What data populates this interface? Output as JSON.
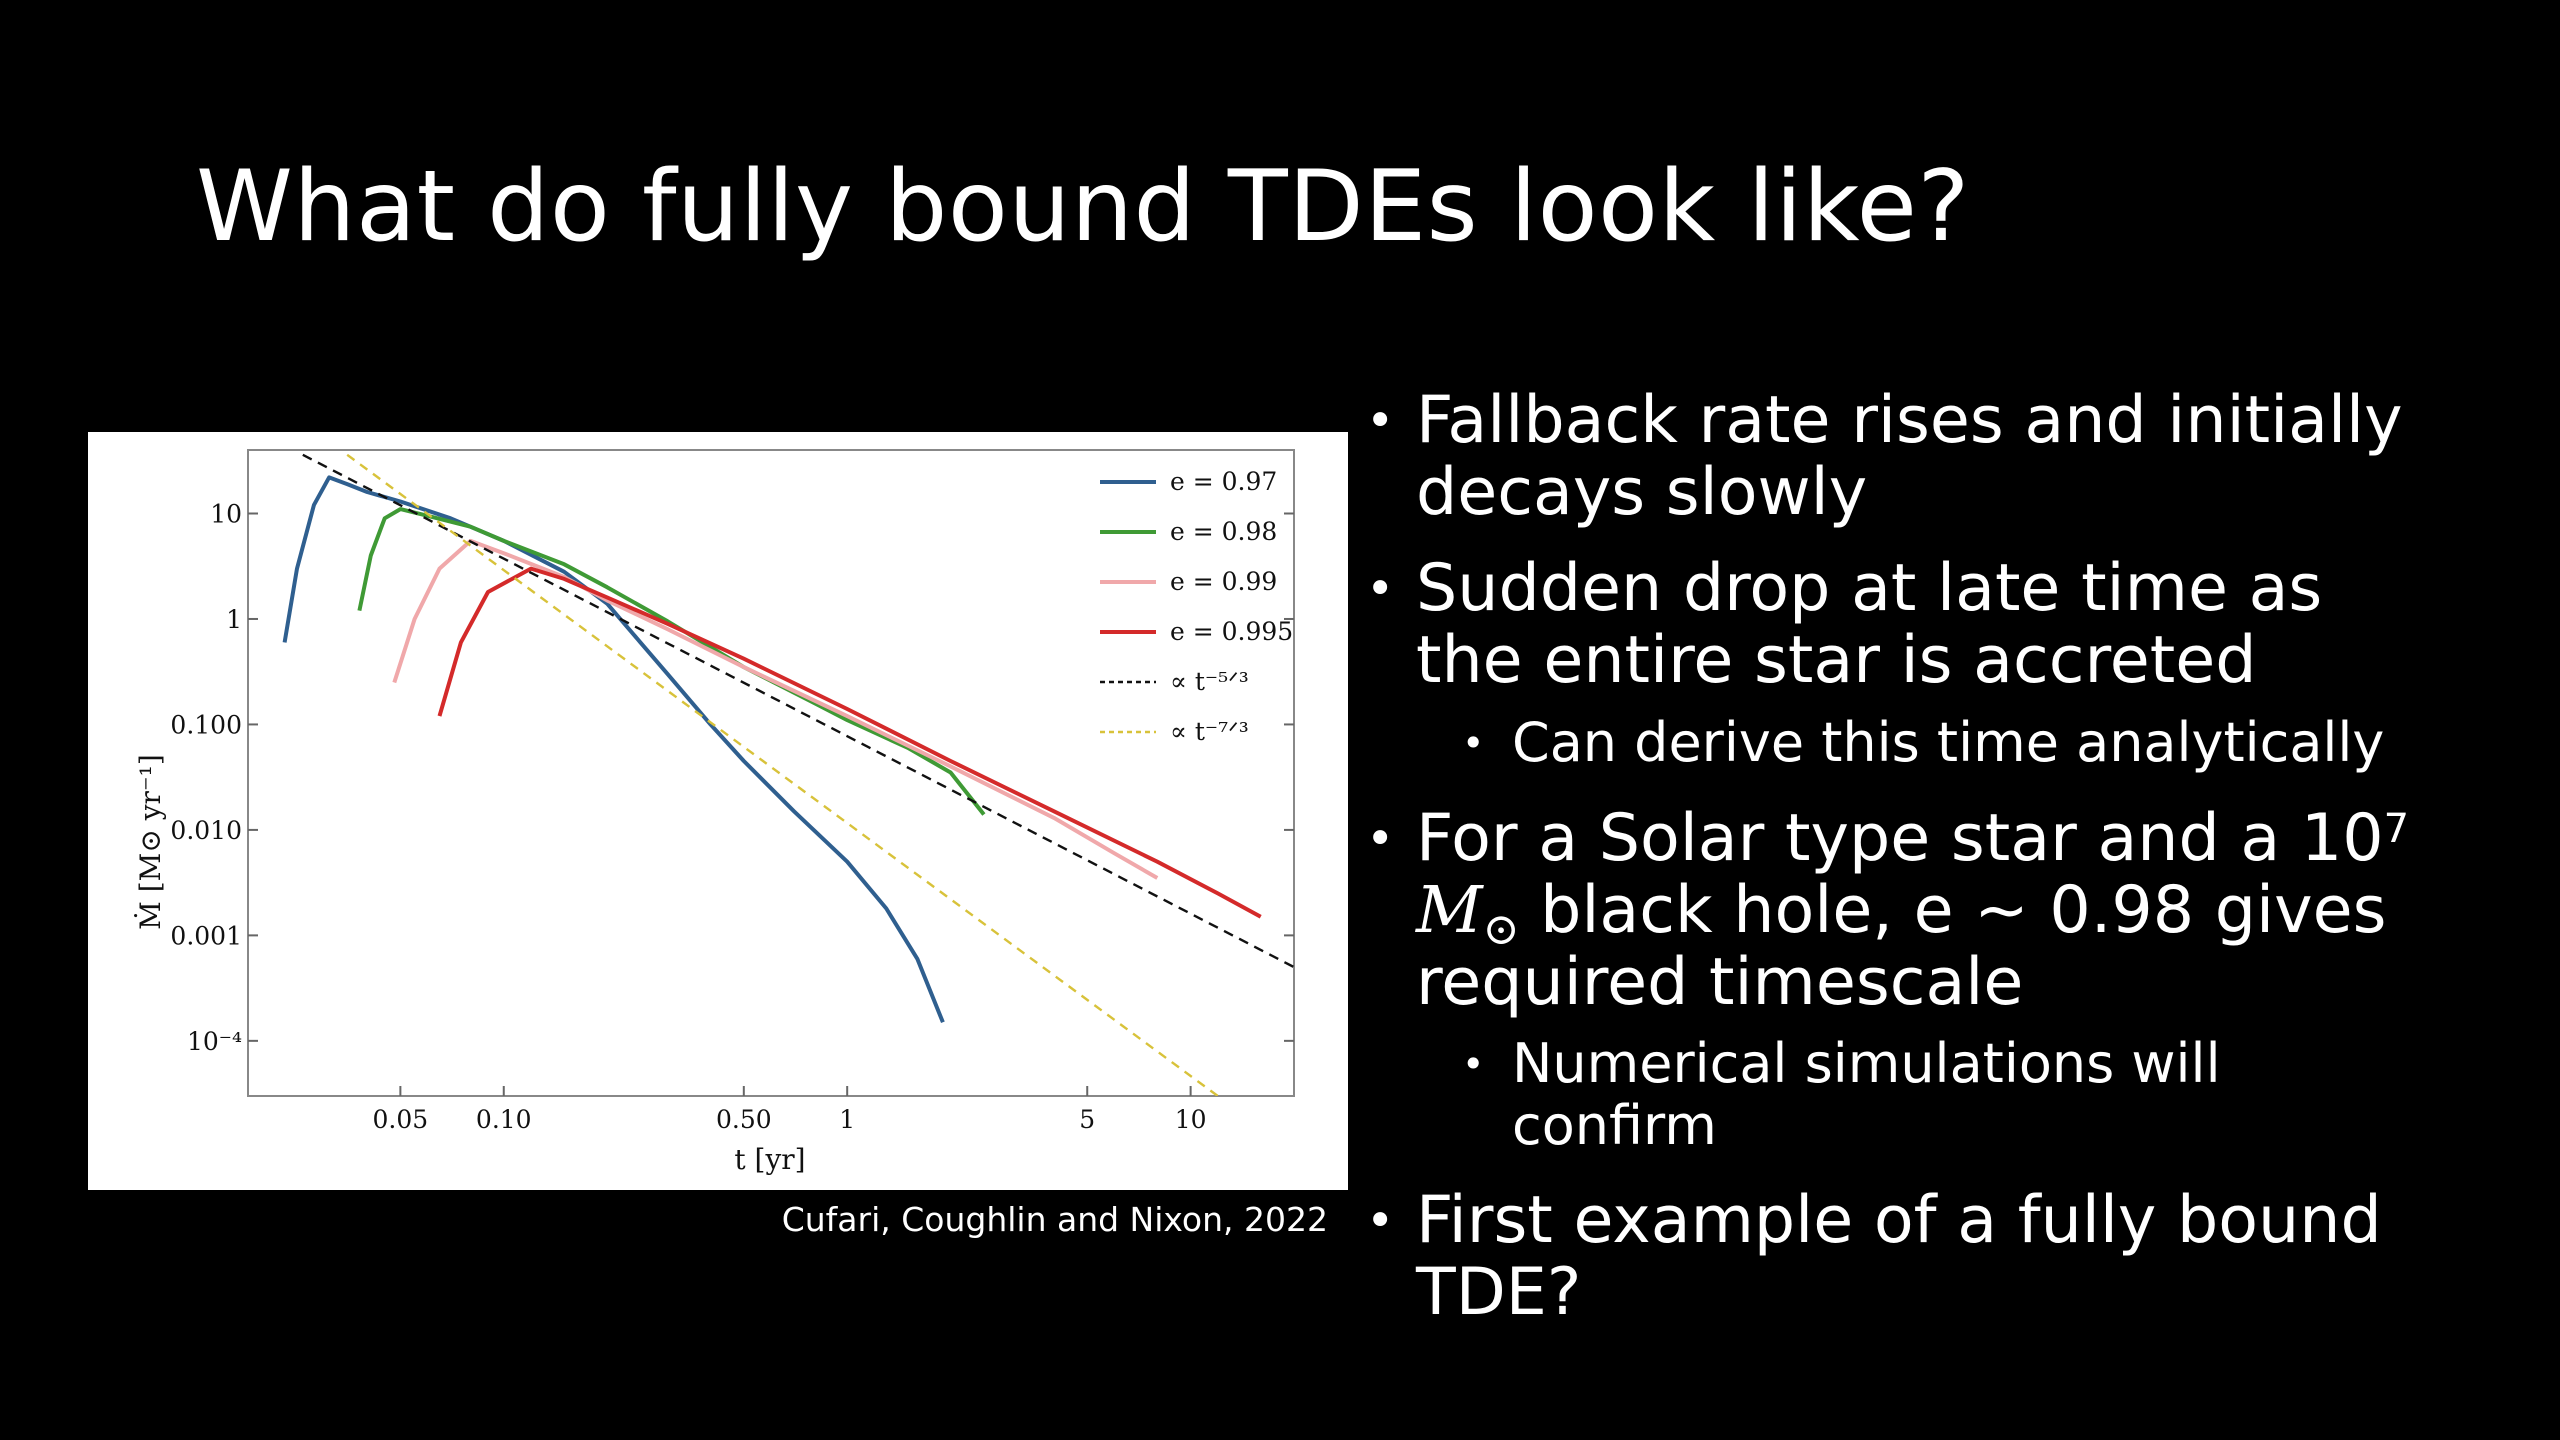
{
  "slide": {
    "title": "What do fully bound TDEs look like?",
    "caption": "Cufari, Coughlin and Nixon, 2022"
  },
  "bullets": {
    "b1_line1": "Fallback rate rises and initially",
    "b1_line2": "decays slowly",
    "b2_line1": "Sudden drop at late time as",
    "b2_line2": "the entire star is accreted",
    "b2_sub": "Can derive this time analytically",
    "b3_line1": "For a Solar type star and a 10",
    "b3_line1_sup": "7",
    "b3_line2_mass_symbol": "M",
    "b3_line2_sun_symbol": "⊙",
    "b3_line2_rest": " black hole, e ~ 0.98 gives",
    "b3_line3": "required timescale",
    "b3_sub_line1": "Numerical simulations will",
    "b3_sub_line2": "confirm",
    "b4_line1": "First example of a fully bound",
    "b4_line2": "TDE?"
  },
  "chart_data": {
    "type": "line",
    "xlabel": "t [yr]",
    "ylabel": "Ṁ [M⊙ yr⁻¹]",
    "xscale": "log",
    "yscale": "log",
    "xlim": [
      0.018,
      20
    ],
    "ylim": [
      3e-05,
      40
    ],
    "x_ticks": [
      {
        "v": 0.05,
        "label": "0.05"
      },
      {
        "v": 0.1,
        "label": "0.10"
      },
      {
        "v": 0.5,
        "label": "0.50"
      },
      {
        "v": 1,
        "label": "1"
      },
      {
        "v": 5,
        "label": "5"
      },
      {
        "v": 10,
        "label": "10"
      }
    ],
    "y_ticks": [
      {
        "v": 10,
        "label": "10"
      },
      {
        "v": 1,
        "label": "1"
      },
      {
        "v": 0.1,
        "label": "0.100"
      },
      {
        "v": 0.01,
        "label": "0.010"
      },
      {
        "v": 0.001,
        "label": "0.001"
      },
      {
        "v": 0.0001,
        "label": "10⁻⁴"
      }
    ],
    "legend_position": "top-right",
    "series": [
      {
        "name": "e = 0.97",
        "color": "#2f5f8f",
        "points": [
          [
            0.023,
            0.6
          ],
          [
            0.025,
            3
          ],
          [
            0.028,
            12
          ],
          [
            0.031,
            22
          ],
          [
            0.035,
            19
          ],
          [
            0.04,
            16
          ],
          [
            0.05,
            13
          ],
          [
            0.07,
            9
          ],
          [
            0.1,
            5.5
          ],
          [
            0.15,
            2.8
          ],
          [
            0.2,
            1.4
          ],
          [
            0.25,
            0.6
          ],
          [
            0.3,
            0.3
          ],
          [
            0.4,
            0.1
          ],
          [
            0.5,
            0.045
          ],
          [
            0.7,
            0.015
          ],
          [
            1,
            0.005
          ],
          [
            1.3,
            0.0018
          ],
          [
            1.6,
            0.0006
          ],
          [
            1.9,
            0.00015
          ]
        ]
      },
      {
        "name": "e = 0.98",
        "color": "#3f9a35",
        "points": [
          [
            0.038,
            1.2
          ],
          [
            0.041,
            4
          ],
          [
            0.045,
            9
          ],
          [
            0.05,
            11
          ],
          [
            0.06,
            9.5
          ],
          [
            0.08,
            7.5
          ],
          [
            0.1,
            5.5
          ],
          [
            0.15,
            3.3
          ],
          [
            0.2,
            2
          ],
          [
            0.3,
            0.95
          ],
          [
            0.5,
            0.35
          ],
          [
            0.8,
            0.16
          ],
          [
            1,
            0.11
          ],
          [
            1.5,
            0.06
          ],
          [
            2,
            0.035
          ],
          [
            2.5,
            0.014
          ]
        ]
      },
      {
        "name": "e = 0.99",
        "color": "#f0a8aa",
        "points": [
          [
            0.048,
            0.25
          ],
          [
            0.055,
            1
          ],
          [
            0.065,
            3
          ],
          [
            0.08,
            5.5
          ],
          [
            0.1,
            4.2
          ],
          [
            0.15,
            2.5
          ],
          [
            0.2,
            1.5
          ],
          [
            0.3,
            0.8
          ],
          [
            0.5,
            0.35
          ],
          [
            1,
            0.12
          ],
          [
            2,
            0.04
          ],
          [
            4,
            0.013
          ],
          [
            6,
            0.006
          ],
          [
            8,
            0.0035
          ]
        ]
      },
      {
        "name": "e = 0.995",
        "color": "#d42a2a",
        "points": [
          [
            0.065,
            0.12
          ],
          [
            0.075,
            0.6
          ],
          [
            0.09,
            1.8
          ],
          [
            0.12,
            3
          ],
          [
            0.15,
            2.4
          ],
          [
            0.2,
            1.6
          ],
          [
            0.3,
            0.9
          ],
          [
            0.5,
            0.42
          ],
          [
            1,
            0.14
          ],
          [
            2,
            0.045
          ],
          [
            4,
            0.015
          ],
          [
            8,
            0.005
          ],
          [
            12,
            0.0025
          ],
          [
            16,
            0.0015
          ]
        ]
      },
      {
        "name": "∝ t⁻⁵ᐟ³",
        "color": "#111111",
        "dash": "10,7",
        "points": [
          [
            0.026,
            36
          ],
          [
            20,
            0.0005
          ]
        ]
      },
      {
        "name": "∝ t⁻⁷ᐟ³",
        "color": "#d8c23a",
        "dash": "9,7",
        "points": [
          [
            0.035,
            36
          ],
          [
            12,
            3e-05
          ]
        ]
      }
    ]
  }
}
